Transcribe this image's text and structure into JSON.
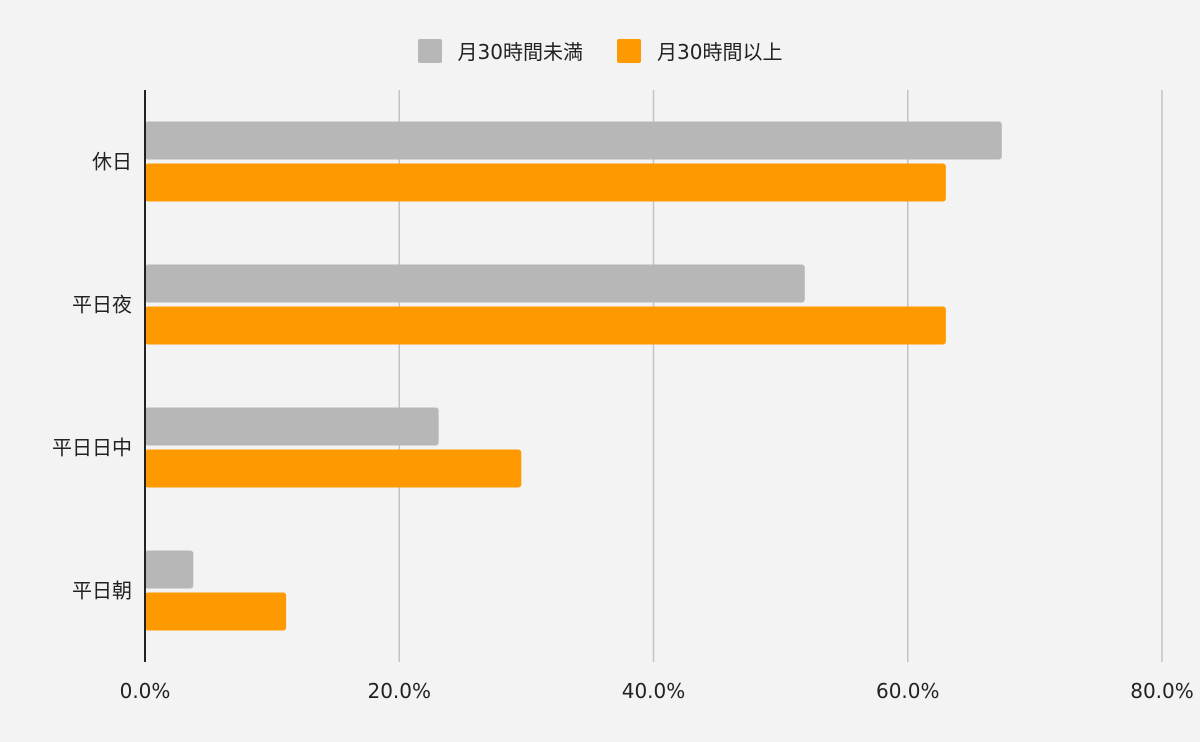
{
  "chart_data": {
    "type": "bar",
    "orientation": "horizontal",
    "categories": [
      "休日",
      "平日夜",
      "平日日中",
      "平日朝"
    ],
    "series": [
      {
        "name": "月30時間未満",
        "color": "#b7b7b7",
        "values": [
          67.4,
          51.9,
          23.1,
          3.8
        ]
      },
      {
        "name": "月30時間以上",
        "color": "#ff9900",
        "values": [
          63.0,
          63.0,
          29.6,
          11.1
        ]
      }
    ],
    "xlim": [
      0,
      80
    ],
    "xticks": [
      0,
      20,
      40,
      60,
      80
    ],
    "xtick_labels": [
      "0.0%",
      "20.0%",
      "40.0%",
      "60.0%",
      "80.0%"
    ],
    "grid": true,
    "legend_position": "top"
  }
}
